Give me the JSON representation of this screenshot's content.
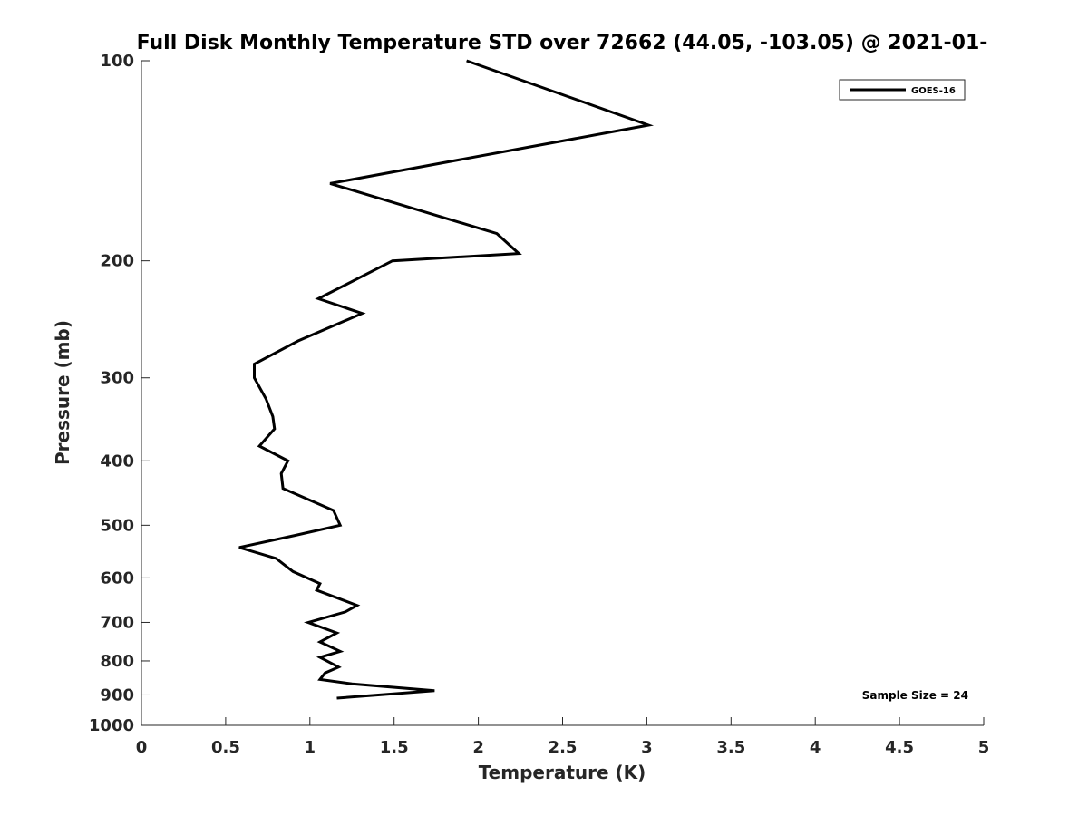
{
  "chart_data": {
    "type": "line",
    "title": "Full Disk Monthly Temperature STD over 72662 (44.05, -103.05) @ 2021-01-",
    "xlabel": "Temperature (K)",
    "ylabel": "Pressure (mb)",
    "xlim": [
      0,
      5
    ],
    "ylim": [
      1000,
      100
    ],
    "y_scale": "log",
    "y_reversed": true,
    "x_ticks": [
      0,
      0.5,
      1,
      1.5,
      2,
      2.5,
      3,
      3.5,
      4,
      4.5,
      5
    ],
    "x_tick_labels": [
      "0",
      "0.5",
      "1",
      "1.5",
      "2",
      "2.5",
      "3",
      "3.5",
      "4",
      "4.5",
      "5"
    ],
    "y_ticks": [
      100,
      200,
      300,
      400,
      500,
      600,
      700,
      800,
      900,
      1000
    ],
    "y_tick_labels": [
      "100",
      "200",
      "300",
      "400",
      "500",
      "600",
      "700",
      "800",
      "900",
      "1000"
    ],
    "grid": false,
    "legend_position": "top-right",
    "series": [
      {
        "name": "GOES-16",
        "color": "#000000",
        "points": [
          [
            1.93,
            100
          ],
          [
            3.01,
            125
          ],
          [
            1.12,
            153
          ],
          [
            2.11,
            182
          ],
          [
            2.24,
            195
          ],
          [
            1.49,
            200
          ],
          [
            1.05,
            228
          ],
          [
            1.31,
            240
          ],
          [
            0.93,
            264
          ],
          [
            0.67,
            286
          ],
          [
            0.67,
            300
          ],
          [
            0.74,
            323
          ],
          [
            0.78,
            343
          ],
          [
            0.79,
            358
          ],
          [
            0.7,
            380
          ],
          [
            0.87,
            400
          ],
          [
            0.83,
            418
          ],
          [
            0.84,
            440
          ],
          [
            1.14,
            475
          ],
          [
            1.18,
            500
          ],
          [
            0.91,
            518
          ],
          [
            0.58,
            540
          ],
          [
            0.8,
            561
          ],
          [
            0.9,
            587
          ],
          [
            1.06,
            612
          ],
          [
            1.04,
            626
          ],
          [
            1.28,
            660
          ],
          [
            1.21,
            675
          ],
          [
            0.99,
            700
          ],
          [
            1.16,
            726
          ],
          [
            1.06,
            749
          ],
          [
            1.18,
            774
          ],
          [
            1.06,
            790
          ],
          [
            1.17,
            817
          ],
          [
            1.09,
            834
          ],
          [
            1.06,
            853
          ],
          [
            1.25,
            866
          ],
          [
            1.74,
            887
          ],
          [
            1.16,
            910
          ]
        ]
      }
    ],
    "annotations": [
      "Sample Size = 24"
    ]
  }
}
